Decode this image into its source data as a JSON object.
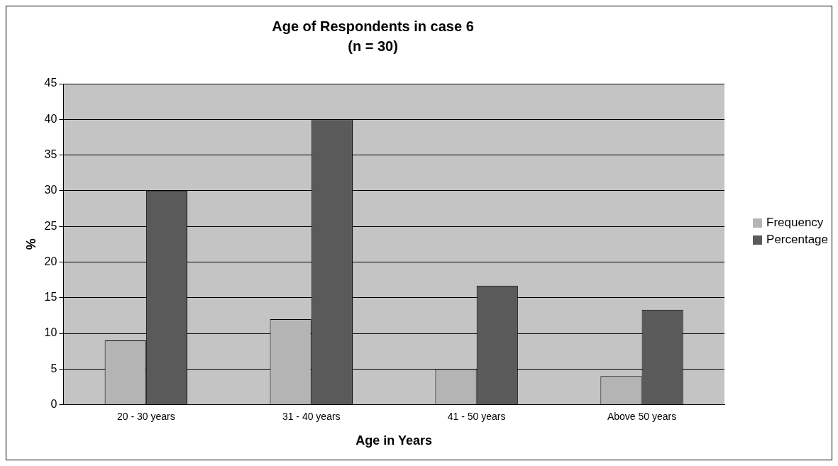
{
  "chart_data": {
    "type": "bar",
    "title": "Age of Respondents in case 6",
    "subtitle": "(n = 30)",
    "xlabel": "Age in Years",
    "ylabel": "%",
    "categories": [
      "20 - 30 years",
      "31 - 40 years",
      "41 - 50 years",
      "Above 50 years"
    ],
    "series": [
      {
        "name": "Frequency",
        "color": "#b4b4b4",
        "values": [
          9,
          12,
          5,
          4
        ]
      },
      {
        "name": "Percentage",
        "color": "#5a5a5a",
        "values": [
          30,
          40,
          16.7,
          13.3
        ]
      }
    ],
    "ylim": [
      0,
      45
    ],
    "yticks": [
      0,
      5,
      10,
      15,
      20,
      25,
      30,
      35,
      40,
      45
    ],
    "grid": "y",
    "legend": "right"
  }
}
